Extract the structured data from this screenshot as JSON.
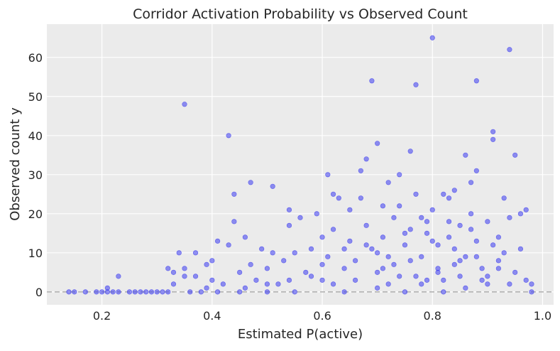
{
  "chart_data": {
    "type": "scatter",
    "title": "Corridor Activation Probability vs Observed Count",
    "xlabel": "Estimated P(active)",
    "ylabel": "Observed count y",
    "xlim": [
      0.1,
      1.02
    ],
    "ylim": [
      -3.3,
      68.5
    ],
    "xticks": [
      0.2,
      0.4,
      0.6,
      0.8,
      1.0
    ],
    "xtick_labels": [
      "0.2",
      "0.4",
      "0.6",
      "0.8",
      "1.0"
    ],
    "yticks": [
      0,
      10,
      20,
      30,
      40,
      50,
      60
    ],
    "ytick_labels": [
      "0",
      "10",
      "20",
      "30",
      "40",
      "50",
      "60"
    ],
    "reference_line": {
      "y": 0,
      "style": "dashed",
      "color": "#b3b3b3"
    },
    "grid": true,
    "background": "#ebebeb",
    "marker_color": "#3b3bf0",
    "marker_alpha": 0.55,
    "series": [
      {
        "points": [
          [
            0.14,
            0
          ],
          [
            0.15,
            0
          ],
          [
            0.17,
            0
          ],
          [
            0.19,
            0
          ],
          [
            0.2,
            0
          ],
          [
            0.21,
            1
          ],
          [
            0.21,
            0
          ],
          [
            0.22,
            0
          ],
          [
            0.23,
            4
          ],
          [
            0.23,
            0
          ],
          [
            0.25,
            0
          ],
          [
            0.26,
            0
          ],
          [
            0.27,
            0
          ],
          [
            0.28,
            0
          ],
          [
            0.29,
            0
          ],
          [
            0.3,
            0
          ],
          [
            0.31,
            0
          ],
          [
            0.32,
            0
          ],
          [
            0.32,
            6
          ],
          [
            0.33,
            5
          ],
          [
            0.33,
            2
          ],
          [
            0.34,
            10
          ],
          [
            0.35,
            48
          ],
          [
            0.35,
            4
          ],
          [
            0.35,
            6
          ],
          [
            0.36,
            0
          ],
          [
            0.37,
            10
          ],
          [
            0.37,
            4
          ],
          [
            0.38,
            0
          ],
          [
            0.39,
            1
          ],
          [
            0.39,
            7
          ],
          [
            0.4,
            3
          ],
          [
            0.4,
            8
          ],
          [
            0.41,
            13
          ],
          [
            0.41,
            0
          ],
          [
            0.42,
            2
          ],
          [
            0.43,
            40
          ],
          [
            0.43,
            12
          ],
          [
            0.44,
            25
          ],
          [
            0.44,
            18
          ],
          [
            0.45,
            5
          ],
          [
            0.45,
            0
          ],
          [
            0.46,
            14
          ],
          [
            0.47,
            7
          ],
          [
            0.47,
            28
          ],
          [
            0.48,
            3
          ],
          [
            0.49,
            11
          ],
          [
            0.5,
            0
          ],
          [
            0.5,
            6
          ],
          [
            0.51,
            27
          ],
          [
            0.51,
            10
          ],
          [
            0.52,
            2
          ],
          [
            0.53,
            8
          ],
          [
            0.54,
            21
          ],
          [
            0.54,
            17
          ],
          [
            0.55,
            0
          ],
          [
            0.55,
            10
          ],
          [
            0.56,
            19
          ],
          [
            0.57,
            5
          ],
          [
            0.58,
            11
          ],
          [
            0.59,
            20
          ],
          [
            0.6,
            14
          ],
          [
            0.6,
            3
          ],
          [
            0.61,
            30
          ],
          [
            0.61,
            9
          ],
          [
            0.62,
            25
          ],
          [
            0.62,
            16
          ],
          [
            0.63,
            24
          ],
          [
            0.64,
            6
          ],
          [
            0.64,
            0
          ],
          [
            0.65,
            21
          ],
          [
            0.65,
            13
          ],
          [
            0.66,
            8
          ],
          [
            0.67,
            24
          ],
          [
            0.67,
            31
          ],
          [
            0.68,
            34
          ],
          [
            0.68,
            17
          ],
          [
            0.69,
            54
          ],
          [
            0.69,
            11
          ],
          [
            0.7,
            38
          ],
          [
            0.7,
            5
          ],
          [
            0.71,
            22
          ],
          [
            0.71,
            14
          ],
          [
            0.72,
            2
          ],
          [
            0.72,
            28
          ],
          [
            0.73,
            19
          ],
          [
            0.73,
            7
          ],
          [
            0.74,
            30
          ],
          [
            0.74,
            22
          ],
          [
            0.75,
            12
          ],
          [
            0.75,
            0
          ],
          [
            0.76,
            36
          ],
          [
            0.76,
            16
          ],
          [
            0.77,
            53
          ],
          [
            0.77,
            25
          ],
          [
            0.78,
            19
          ],
          [
            0.78,
            9
          ],
          [
            0.79,
            3
          ],
          [
            0.79,
            15
          ],
          [
            0.8,
            65
          ],
          [
            0.8,
            21
          ],
          [
            0.81,
            12
          ],
          [
            0.81,
            6
          ],
          [
            0.82,
            25
          ],
          [
            0.82,
            0
          ],
          [
            0.83,
            18
          ],
          [
            0.83,
            24
          ],
          [
            0.84,
            26
          ],
          [
            0.84,
            11
          ],
          [
            0.85,
            4
          ],
          [
            0.85,
            17
          ],
          [
            0.86,
            35
          ],
          [
            0.86,
            9
          ],
          [
            0.87,
            28
          ],
          [
            0.87,
            20
          ],
          [
            0.88,
            54
          ],
          [
            0.88,
            31
          ],
          [
            0.88,
            13
          ],
          [
            0.89,
            6
          ],
          [
            0.9,
            18
          ],
          [
            0.9,
            2
          ],
          [
            0.91,
            39
          ],
          [
            0.91,
            41
          ],
          [
            0.92,
            14
          ],
          [
            0.92,
            8
          ],
          [
            0.93,
            24
          ],
          [
            0.93,
            10
          ],
          [
            0.94,
            62
          ],
          [
            0.94,
            19
          ],
          [
            0.95,
            35
          ],
          [
            0.95,
            5
          ],
          [
            0.96,
            20
          ],
          [
            0.96,
            11
          ],
          [
            0.97,
            21
          ],
          [
            0.97,
            3
          ],
          [
            0.98,
            2
          ],
          [
            0.98,
            0
          ],
          [
            0.66,
            3
          ],
          [
            0.7,
            1
          ],
          [
            0.74,
            4
          ],
          [
            0.78,
            2
          ],
          [
            0.82,
            3
          ],
          [
            0.86,
            1
          ],
          [
            0.9,
            4
          ],
          [
            0.94,
            2
          ],
          [
            0.62,
            2
          ],
          [
            0.58,
            4
          ],
          [
            0.54,
            3
          ],
          [
            0.5,
            2
          ],
          [
            0.46,
            1
          ],
          [
            0.7,
            10
          ],
          [
            0.76,
            8
          ],
          [
            0.8,
            13
          ],
          [
            0.84,
            7
          ],
          [
            0.88,
            9
          ],
          [
            0.92,
            6
          ],
          [
            0.68,
            12
          ],
          [
            0.72,
            9
          ],
          [
            0.64,
            11
          ],
          [
            0.6,
            7
          ],
          [
            0.75,
            15
          ],
          [
            0.79,
            18
          ],
          [
            0.83,
            14
          ],
          [
            0.87,
            16
          ],
          [
            0.91,
            12
          ],
          [
            0.71,
            6
          ],
          [
            0.77,
            4
          ],
          [
            0.81,
            5
          ],
          [
            0.85,
            8
          ],
          [
            0.89,
            3
          ]
        ]
      }
    ]
  }
}
